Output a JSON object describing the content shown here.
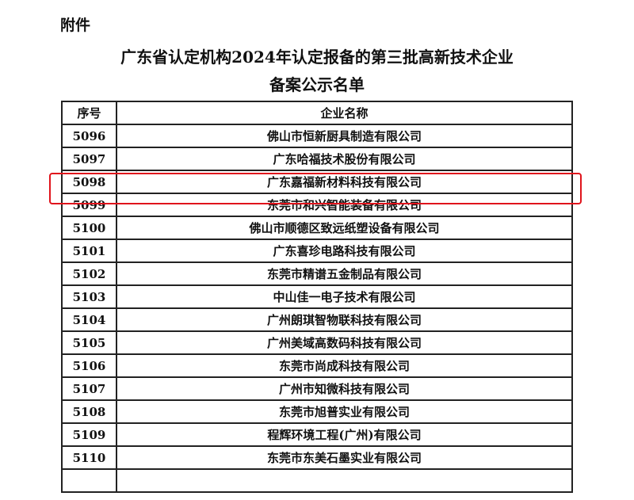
{
  "attachment_label": "附件",
  "title_line1": "广东省认定机构2024年认定报备的第三批高新技术企业",
  "title_line2": "备案公示名单",
  "table": {
    "headers": [
      "序号",
      "企业名称"
    ],
    "rows": [
      {
        "no": "5096",
        "name": "佛山市恒新厨具制造有限公司"
      },
      {
        "no": "5097",
        "name": "广东哈福技术股份有限公司"
      },
      {
        "no": "5098",
        "name": "广东嘉福新材料科技有限公司"
      },
      {
        "no": "5099",
        "name": "东莞市和兴智能装备有限公司"
      },
      {
        "no": "5100",
        "name": "佛山市顺德区致远纸塑设备有限公司"
      },
      {
        "no": "5101",
        "name": "广东喜珍电路科技有限公司"
      },
      {
        "no": "5102",
        "name": "东莞市精谱五金制品有限公司"
      },
      {
        "no": "5103",
        "name": "中山佳一电子技术有限公司"
      },
      {
        "no": "5104",
        "name": "广州朗琪智物联科技有限公司"
      },
      {
        "no": "5105",
        "name": "广州美域高数码科技有限公司"
      },
      {
        "no": "5106",
        "name": "东莞市尚成科技有限公司"
      },
      {
        "no": "5107",
        "name": "广州市知微科技有限公司"
      },
      {
        "no": "5108",
        "name": "东莞市旭普实业有限公司"
      },
      {
        "no": "5109",
        "name": "程辉环境工程(广州)有限公司"
      },
      {
        "no": "5110",
        "name": "东莞市东美石墨实业有限公司"
      },
      {
        "no": "",
        "name": ""
      }
    ]
  },
  "highlight_color": "#e0141c",
  "highlighted_row": "5098"
}
